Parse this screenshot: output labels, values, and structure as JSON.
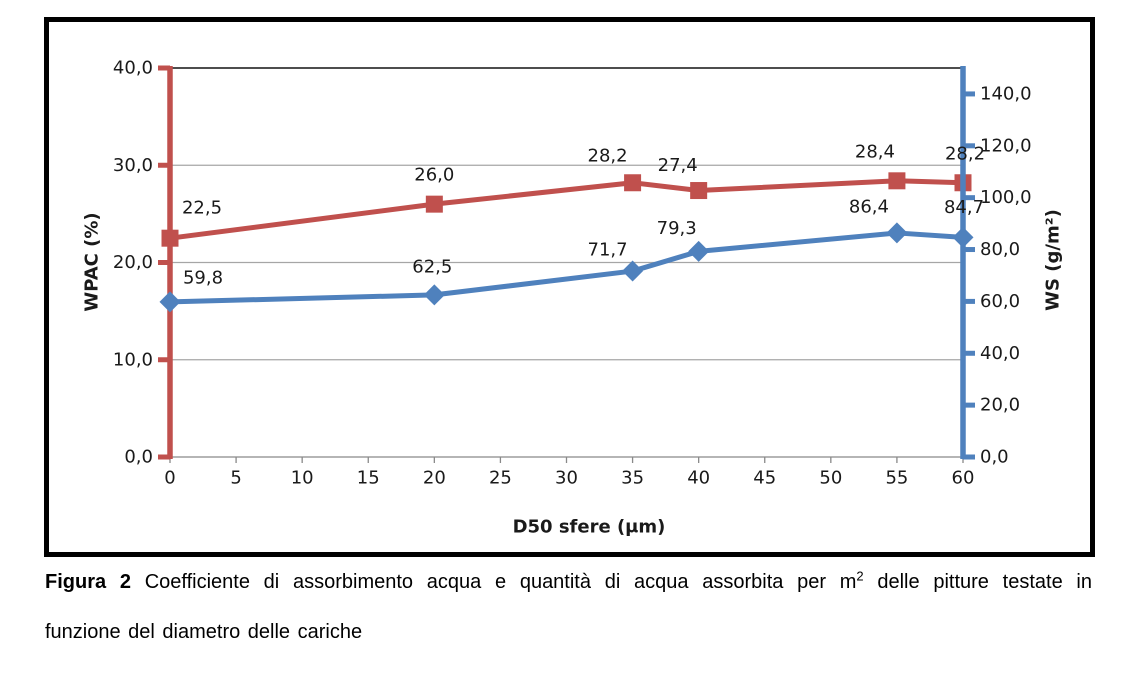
{
  "caption": {
    "bold_label": "Figura 2",
    "line1_rest": " Coefficiente di assorbimento acqua e quantità di acqua assorbita per m",
    "superscript": "2",
    "line1_tail": " delle pitture testate in",
    "line2": "funzione del diametro delle cariche"
  },
  "chart_data": {
    "type": "line",
    "title": "",
    "legend": "none",
    "x": [
      0,
      20,
      35,
      40,
      55,
      60
    ],
    "x_axis": {
      "label": "D50 sfere (μm)",
      "min": 0,
      "max": 60,
      "tick_step": 5,
      "tick_labels": [
        "0",
        "5",
        "10",
        "15",
        "20",
        "25",
        "30",
        "35",
        "40",
        "45",
        "50",
        "55",
        "60"
      ],
      "line_color": "#898989"
    },
    "left_axis": {
      "label": "WPAC (%)",
      "min": 0,
      "max": 40,
      "tick_step": 10,
      "tick_labels": [
        "0,0",
        "10,0",
        "20,0",
        "30,0",
        "40,0"
      ],
      "color": "#C0504D"
    },
    "right_axis": {
      "label": "WS (g/m²)",
      "min": 0,
      "max": 150,
      "tick_step": 20,
      "tick_labels": [
        "0,0",
        "20,0",
        "40,0",
        "60,0",
        "80,0",
        "100,0",
        "120,0",
        "140,0"
      ],
      "color": "#4F81BD"
    },
    "series": [
      {
        "name": "WPAC",
        "axis": "left",
        "color": "#C0504D",
        "marker": "square",
        "values": [
          22.5,
          26.0,
          28.2,
          27.4,
          28.4,
          28.2
        ],
        "labels": [
          "22,5",
          "26,0",
          "28,2",
          "27,4",
          "28,4",
          "28,2"
        ],
        "label_offsets": [
          [
            32,
            -30
          ],
          [
            0,
            -29
          ],
          [
            -25,
            -27
          ],
          [
            -21,
            -25
          ],
          [
            -22,
            -29
          ],
          [
            2,
            -29
          ]
        ]
      },
      {
        "name": "WS",
        "axis": "right",
        "color": "#4F81BD",
        "marker": "diamond",
        "values": [
          59.8,
          62.5,
          71.7,
          79.3,
          86.4,
          84.7
        ],
        "labels": [
          "59,8",
          "62,5",
          "71,7",
          "79,3",
          "86,4",
          "84,7"
        ],
        "label_offsets": [
          [
            33,
            -24
          ],
          [
            -2,
            -28
          ],
          [
            -25,
            -21
          ],
          [
            -22,
            -23
          ],
          [
            -28,
            -26
          ],
          [
            1,
            -30
          ]
        ]
      }
    ],
    "grid": {
      "horizontal": true,
      "vertical": false,
      "color": "#A6A6A6",
      "top_border_color": "#4D4D4D"
    }
  }
}
